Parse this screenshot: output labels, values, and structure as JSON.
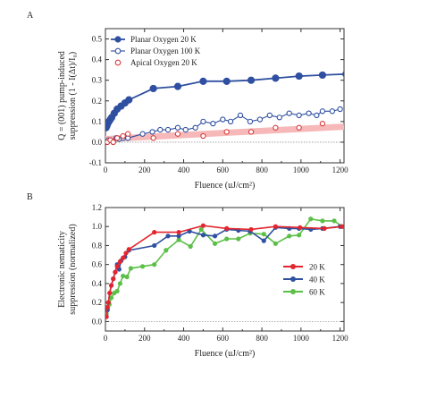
{
  "colors": {
    "planar20": "#2f4fa0",
    "apical_marker": "#d9393b",
    "apical_band": "#f6b8b8",
    "red": "#e3262e",
    "blue": "#3050a0",
    "green": "#5cbf47",
    "axis": "#333333",
    "zero_line": "#999999"
  },
  "chart_data": [
    {
      "panel": "A",
      "type": "scatter",
      "xlabel": "Fluence (uJ/cm²)",
      "ylabel_line1": "Q = (001) pump-induced",
      "ylabel_line2": "suppression (1 - I(Δt)/I₀)",
      "xlim": [
        0,
        1220
      ],
      "ylim": [
        -0.1,
        0.55
      ],
      "xticks": [
        "0",
        "200",
        "400",
        "600",
        "800",
        "1000",
        "1200"
      ],
      "yticks": [
        "-0.1",
        "0.0",
        "0.1",
        "0.2",
        "0.3",
        "0.4",
        "0.5"
      ],
      "zero_line": true,
      "legend_position": "top-left",
      "series": [
        {
          "name": "Planar Oxygen 20 K",
          "marker": "filled-circle-line",
          "points": [
            [
              3,
              0.07
            ],
            [
              8,
              0.08
            ],
            [
              12,
              0.09
            ],
            [
              18,
              0.1
            ],
            [
              25,
              0.11
            ],
            [
              32,
              0.12
            ],
            [
              45,
              0.14
            ],
            [
              60,
              0.16
            ],
            [
              80,
              0.175
            ],
            [
              100,
              0.19
            ],
            [
              120,
              0.205
            ],
            [
              245,
              0.26
            ],
            [
              370,
              0.27
            ],
            [
              500,
              0.295
            ],
            [
              620,
              0.295
            ],
            [
              745,
              0.3
            ],
            [
              870,
              0.31
            ],
            [
              990,
              0.32
            ],
            [
              1110,
              0.325
            ],
            [
              1230,
              0.33
            ]
          ]
        },
        {
          "name": "Planar Oxygen 100 K",
          "marker": "open-circle-line",
          "points": [
            [
              5,
              0.0
            ],
            [
              15,
              0.01
            ],
            [
              25,
              0.01
            ],
            [
              40,
              0.0
            ],
            [
              55,
              0.02
            ],
            [
              70,
              0.015
            ],
            [
              90,
              0.02
            ],
            [
              115,
              0.02
            ],
            [
              190,
              0.04
            ],
            [
              240,
              0.05
            ],
            [
              280,
              0.06
            ],
            [
              320,
              0.06
            ],
            [
              370,
              0.07
            ],
            [
              410,
              0.06
            ],
            [
              460,
              0.07
            ],
            [
              500,
              0.1
            ],
            [
              550,
              0.09
            ],
            [
              600,
              0.11
            ],
            [
              640,
              0.1
            ],
            [
              690,
              0.13
            ],
            [
              740,
              0.1
            ],
            [
              790,
              0.11
            ],
            [
              840,
              0.13
            ],
            [
              890,
              0.12
            ],
            [
              940,
              0.14
            ],
            [
              990,
              0.13
            ],
            [
              1040,
              0.14
            ],
            [
              1080,
              0.13
            ],
            [
              1110,
              0.15
            ],
            [
              1160,
              0.15
            ],
            [
              1200,
              0.16
            ]
          ]
        },
        {
          "name": "Apical Oxygen 20 K",
          "marker": "open-circle",
          "points": [
            [
              10,
              0.0
            ],
            [
              25,
              0.01
            ],
            [
              40,
              0.0
            ],
            [
              60,
              0.02
            ],
            [
              90,
              0.03
            ],
            [
              115,
              0.04
            ],
            [
              245,
              0.02
            ],
            [
              370,
              0.04
            ],
            [
              500,
              0.03
            ],
            [
              620,
              0.05
            ],
            [
              745,
              0.05
            ],
            [
              870,
              0.07
            ],
            [
              990,
              0.07
            ],
            [
              1110,
              0.09
            ]
          ]
        }
      ],
      "band": {
        "name": "Apical trend",
        "x": [
          0,
          1220
        ],
        "y": [
          0.015,
          0.075
        ]
      }
    },
    {
      "panel": "B",
      "type": "line",
      "xlabel": "Fluence (uJ/cm²)",
      "ylabel_line1": "Electronic nematicity",
      "ylabel_line2": "suppression (normalized)",
      "xlim": [
        0,
        1220
      ],
      "ylim": [
        -0.1,
        1.2
      ],
      "xticks": [
        "0",
        "200",
        "400",
        "600",
        "800",
        "1000",
        "1200"
      ],
      "yticks": [
        "0.0",
        "0.2",
        "0.4",
        "0.6",
        "0.8",
        "1.0",
        "1.2"
      ],
      "zero_line": true,
      "legend_position": "right",
      "series": [
        {
          "name": "20 K",
          "points": [
            [
              5,
              0.05
            ],
            [
              10,
              0.15
            ],
            [
              15,
              0.2
            ],
            [
              22,
              0.3
            ],
            [
              30,
              0.38
            ],
            [
              40,
              0.45
            ],
            [
              50,
              0.52
            ],
            [
              60,
              0.58
            ],
            [
              75,
              0.63
            ],
            [
              90,
              0.67
            ],
            [
              105,
              0.72
            ],
            [
              120,
              0.76
            ],
            [
              250,
              0.94
            ],
            [
              375,
              0.94
            ],
            [
              500,
              1.01
            ],
            [
              620,
              0.98
            ],
            [
              745,
              0.97
            ],
            [
              870,
              1.0
            ],
            [
              995,
              0.99
            ],
            [
              1120,
              0.98
            ],
            [
              1210,
              1.0
            ]
          ]
        },
        {
          "name": "40 K",
          "points": [
            [
              5,
              0.05
            ],
            [
              10,
              0.12
            ],
            [
              15,
              0.2
            ],
            [
              22,
              0.3
            ],
            [
              30,
              0.38
            ],
            [
              40,
              0.45
            ],
            [
              50,
              0.52
            ],
            [
              60,
              0.6
            ],
            [
              70,
              0.55
            ],
            [
              80,
              0.64
            ],
            [
              100,
              0.68
            ],
            [
              120,
              0.75
            ],
            [
              250,
              0.8
            ],
            [
              320,
              0.9
            ],
            [
              375,
              0.9
            ],
            [
              430,
              0.95
            ],
            [
              500,
              0.91
            ],
            [
              560,
              0.9
            ],
            [
              620,
              0.97
            ],
            [
              680,
              0.96
            ],
            [
              740,
              0.95
            ],
            [
              810,
              0.85
            ],
            [
              870,
              0.99
            ],
            [
              940,
              0.98
            ],
            [
              990,
              0.98
            ],
            [
              1050,
              0.97
            ],
            [
              1110,
              0.98
            ],
            [
              1200,
              1.0
            ]
          ]
        },
        {
          "name": "60 K",
          "points": [
            [
              5,
              0.08
            ],
            [
              12,
              0.14
            ],
            [
              20,
              0.18
            ],
            [
              30,
              0.25
            ],
            [
              45,
              0.3
            ],
            [
              60,
              0.32
            ],
            [
              75,
              0.4
            ],
            [
              90,
              0.48
            ],
            [
              110,
              0.47
            ],
            [
              130,
              0.56
            ],
            [
              190,
              0.58
            ],
            [
              250,
              0.6
            ],
            [
              310,
              0.75
            ],
            [
              375,
              0.86
            ],
            [
              435,
              0.79
            ],
            [
              490,
              0.97
            ],
            [
              560,
              0.82
            ],
            [
              620,
              0.87
            ],
            [
              680,
              0.87
            ],
            [
              740,
              0.93
            ],
            [
              810,
              0.92
            ],
            [
              870,
              0.82
            ],
            [
              940,
              0.9
            ],
            [
              990,
              0.91
            ],
            [
              1050,
              1.08
            ],
            [
              1110,
              1.06
            ],
            [
              1170,
              1.06
            ],
            [
              1210,
              1.0
            ]
          ]
        }
      ]
    }
  ]
}
